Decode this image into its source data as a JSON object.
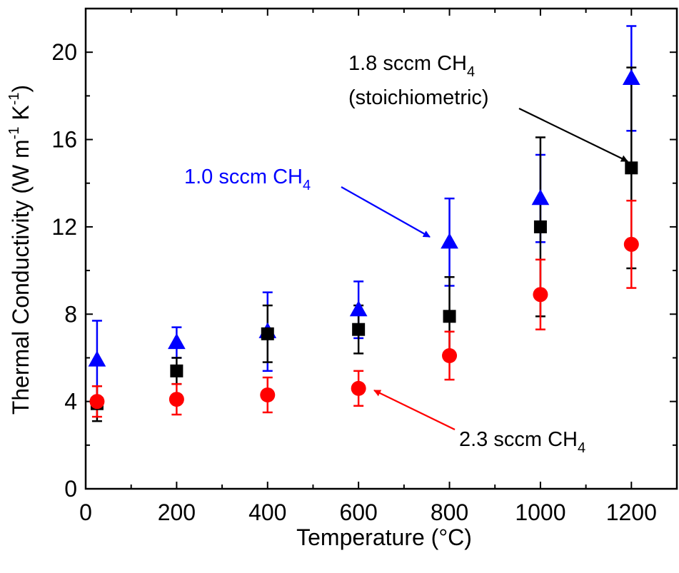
{
  "chart_data": {
    "type": "scatter",
    "xlabel": "Temperature (°C)",
    "ylabel_parts": {
      "main": "Thermal Conductivity (W m",
      "exp1": "-1",
      "mid": " K",
      "exp2": "-1",
      "end": ")"
    },
    "xlim": [
      0,
      1300
    ],
    "ylim": [
      0,
      22
    ],
    "xticks": [
      0,
      200,
      400,
      600,
      800,
      1000,
      1200
    ],
    "yticks": [
      0,
      4,
      8,
      12,
      16,
      20
    ],
    "series": [
      {
        "marker": "triangle",
        "color": "#0000ff",
        "x": [
          25,
          200,
          400,
          600,
          800,
          1000,
          1200
        ],
        "y": [
          5.9,
          6.7,
          7.2,
          8.2,
          11.3,
          13.3,
          18.8
        ],
        "err": [
          1.8,
          0.7,
          1.8,
          1.3,
          2.0,
          2.0,
          2.4
        ]
      },
      {
        "marker": "square",
        "color": "#000000",
        "x": [
          25,
          200,
          400,
          600,
          800,
          1000,
          1200
        ],
        "y": [
          3.9,
          5.4,
          7.1,
          7.3,
          7.9,
          12.0,
          14.7
        ],
        "err": [
          0.8,
          0.6,
          1.3,
          1.1,
          1.8,
          4.1,
          4.6
        ]
      },
      {
        "marker": "circle",
        "color": "#ff0000",
        "x": [
          25,
          200,
          400,
          600,
          800,
          1000,
          1200
        ],
        "y": [
          4.0,
          4.1,
          4.3,
          4.6,
          6.1,
          8.9,
          11.2
        ],
        "err": [
          0.7,
          0.7,
          0.8,
          0.8,
          1.1,
          1.6,
          2.0
        ]
      }
    ],
    "annotations": [
      {
        "line1": "1.8 sccm CH",
        "sub1": "4",
        "line2": "(stoichiometric)",
        "color": "#000000"
      },
      {
        "line1": "1.0 sccm CH",
        "sub1": "4",
        "color": "#0000ff"
      },
      {
        "line1": "2.3 sccm CH",
        "sub1": "4",
        "color": "#ff0000"
      }
    ]
  }
}
